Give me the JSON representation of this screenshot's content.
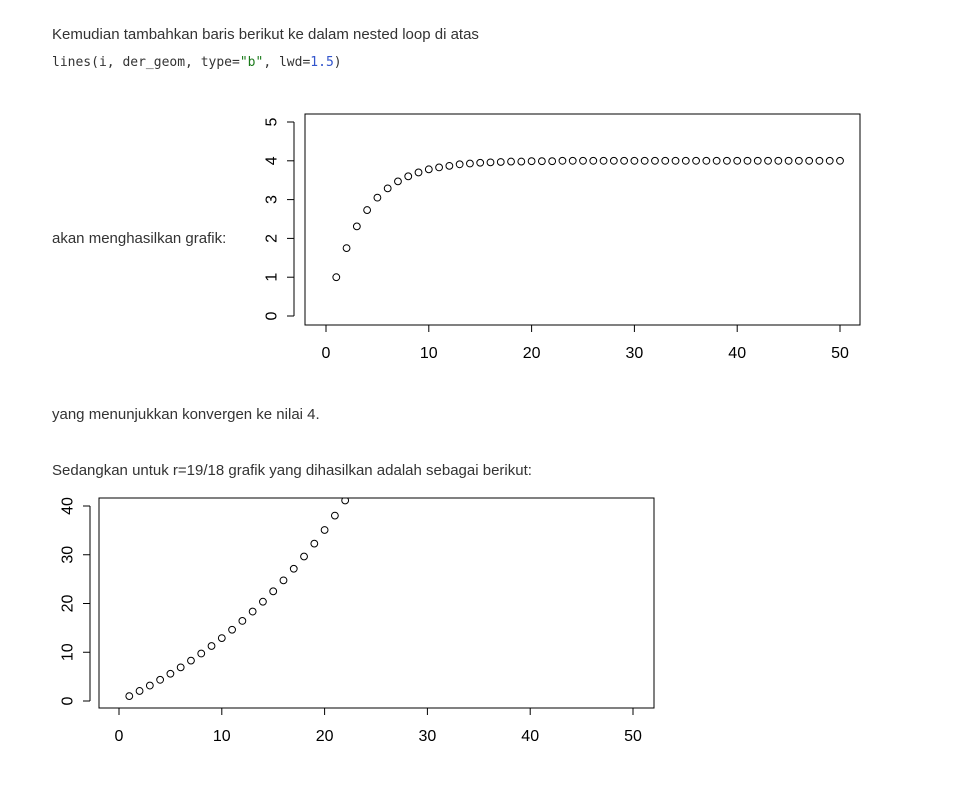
{
  "article": {
    "intro": "Kemudian tambahkan baris berikut ke dalam nested loop di atas",
    "code": {
      "fn": "lines(i, der_geom, type=",
      "str": "\"b\"",
      "mid": ", lwd=",
      "num": "1.5",
      "end": ")"
    },
    "result_label": "akan menghasilkan grafik:",
    "convergence_note": "yang menunjukkan konvergen ke nilai 4.",
    "second_intro": "Sedangkan untuk r=19/18 grafik yang dihasilkan adalah sebagai berikut:"
  },
  "chart_data": [
    {
      "type": "scatter",
      "title": "",
      "xlabel": "",
      "ylabel": "",
      "xlim": [
        0,
        50
      ],
      "ylim": [
        0,
        5
      ],
      "xticks": [
        "0",
        "10",
        "20",
        "30",
        "40",
        "50"
      ],
      "yticks": [
        "0",
        "1",
        "2",
        "3",
        "4",
        "5"
      ],
      "marker": "open-circle",
      "grid": false,
      "x": [
        1,
        2,
        3,
        4,
        5,
        6,
        7,
        8,
        9,
        10,
        11,
        12,
        13,
        14,
        15,
        16,
        17,
        18,
        19,
        20,
        21,
        22,
        23,
        24,
        25,
        26,
        27,
        28,
        29,
        30,
        31,
        32,
        33,
        34,
        35,
        36,
        37,
        38,
        39,
        40,
        41,
        42,
        43,
        44,
        45,
        46,
        47,
        48,
        49,
        50
      ],
      "y": [
        1,
        1.75,
        2.31,
        2.73,
        3.05,
        3.29,
        3.47,
        3.6,
        3.7,
        3.78,
        3.83,
        3.87,
        3.91,
        3.93,
        3.95,
        3.96,
        3.97,
        3.98,
        3.98,
        3.99,
        3.99,
        3.99,
        4,
        4,
        4,
        4,
        4,
        4,
        4,
        4,
        4,
        4,
        4,
        4,
        4,
        4,
        4,
        4,
        4,
        4,
        4,
        4,
        4,
        4,
        4,
        4,
        4,
        4,
        4,
        4
      ]
    },
    {
      "type": "scatter",
      "title": "",
      "xlabel": "",
      "ylabel": "",
      "xlim": [
        0,
        50
      ],
      "ylim": [
        0,
        40
      ],
      "xticks": [
        "0",
        "10",
        "20",
        "30",
        "40",
        "50"
      ],
      "yticks": [
        "0",
        "10",
        "20",
        "30",
        "40"
      ],
      "marker": "open-circle",
      "grid": false,
      "x": [
        1,
        2,
        3,
        4,
        5,
        6,
        7,
        8,
        9,
        10,
        11,
        12,
        13,
        14,
        15,
        16,
        17,
        18,
        19,
        20,
        21,
        22
      ],
      "y": [
        1,
        2.06,
        3.17,
        4.35,
        5.59,
        6.9,
        8.28,
        9.74,
        11.28,
        12.9,
        14.62,
        16.43,
        18.35,
        20.37,
        22.5,
        24.75,
        27.13,
        29.64,
        32.28,
        35.08,
        38.03,
        41.14
      ]
    }
  ]
}
